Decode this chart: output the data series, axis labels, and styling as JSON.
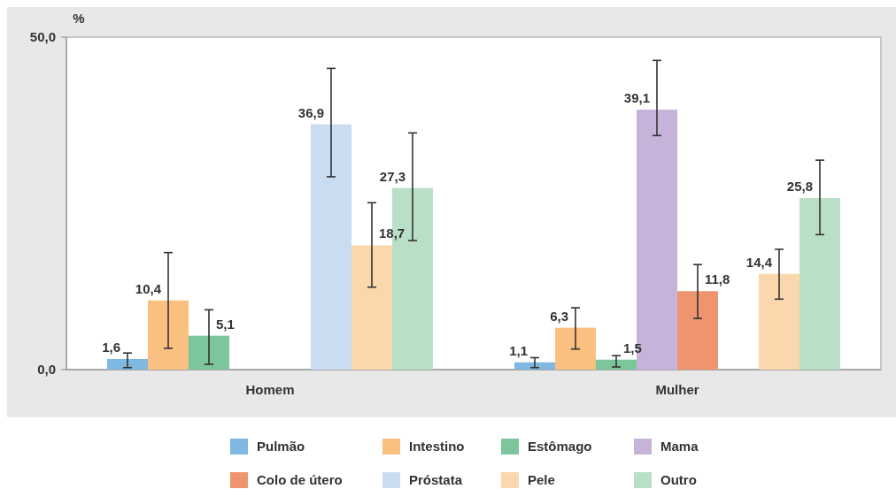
{
  "chart_data": {
    "type": "bar",
    "ylabel": "%",
    "categories": [
      "Homem",
      "Mulher"
    ],
    "ylim": [
      0,
      50
    ],
    "yticks": [
      {
        "value": 0,
        "label": "0,0"
      },
      {
        "value": 50,
        "label": "50,0"
      }
    ],
    "legend": "bottom",
    "series": [
      {
        "name": "Pulmão",
        "color": "#7fb8e0",
        "values": [
          1.6,
          1.1
        ],
        "value_labels": [
          "1,6",
          "1,1"
        ],
        "errors": [
          [
            0.3,
            2.5
          ],
          [
            0.3,
            1.8
          ]
        ]
      },
      {
        "name": "Intestino",
        "color": "#f9c07f",
        "values": [
          10.4,
          6.3
        ],
        "value_labels": [
          "10,4",
          "6,3"
        ],
        "errors": [
          [
            3.2,
            17.6
          ],
          [
            3.1,
            9.3
          ]
        ]
      },
      {
        "name": "Estômago",
        "color": "#7dc59a",
        "values": [
          5.1,
          1.5
        ],
        "value_labels": [
          "5,1",
          "1,5"
        ],
        "errors": [
          [
            0.8,
            9.0
          ],
          [
            0.4,
            2.1
          ]
        ]
      },
      {
        "name": "Mama",
        "color": "#c7b3d9",
        "values": [
          null,
          39.1
        ],
        "value_labels": [
          null,
          "39,1"
        ],
        "errors": [
          null,
          [
            35.2,
            46.5
          ]
        ]
      },
      {
        "name": "Colo de útero",
        "color": "#ee9570",
        "values": [
          null,
          11.8
        ],
        "value_labels": [
          null,
          "11,8"
        ],
        "errors": [
          null,
          [
            7.7,
            15.8
          ]
        ]
      },
      {
        "name": "Próstata",
        "color": "#c9dcf0",
        "values": [
          36.9,
          null
        ],
        "value_labels": [
          "36,9",
          null
        ],
        "errors": [
          [
            29.0,
            45.3
          ],
          null
        ]
      },
      {
        "name": "Pele",
        "color": "#fbd7ae",
        "values": [
          18.7,
          14.4
        ],
        "value_labels": [
          "18,7",
          "14,4"
        ],
        "errors": [
          [
            12.4,
            25.1
          ],
          [
            10.6,
            18.1
          ]
        ]
      },
      {
        "name": "Outro",
        "color": "#b9dfc6",
        "values": [
          27.3,
          25.8
        ],
        "value_labels": [
          "27,3",
          "25,8"
        ],
        "errors": [
          [
            19.4,
            35.6
          ],
          [
            20.3,
            31.5
          ]
        ]
      }
    ]
  }
}
